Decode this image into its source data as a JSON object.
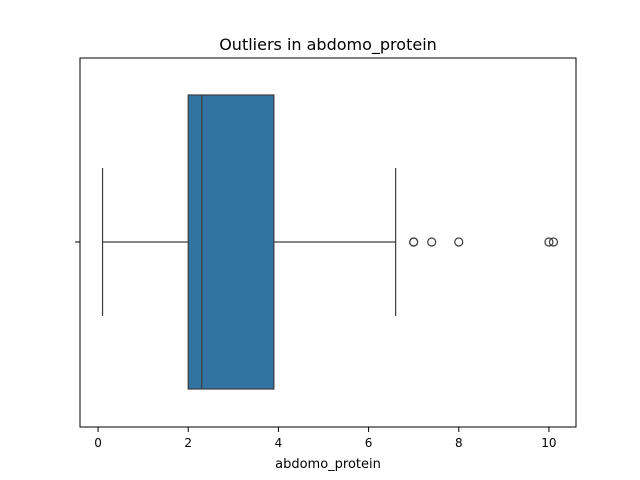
{
  "chart_data": {
    "type": "box",
    "title": "Outliers in abdomo_protein",
    "xlabel": "abdomo_protein",
    "ylabel": "",
    "xlim": [
      -0.4,
      10.6
    ],
    "xticks": [
      0,
      2,
      4,
      6,
      8,
      10
    ],
    "grid": false,
    "legend": "none",
    "box": {
      "whisker_low": 0.1,
      "q1": 2.0,
      "median": 2.3,
      "q3": 3.9,
      "whisker_high": 6.6,
      "outliers": [
        7.0,
        7.0,
        7.4,
        8.0,
        10.0,
        10.1
      ]
    },
    "colors": {
      "box_fill": "#3274a1",
      "edge": "#3d3d3d"
    }
  }
}
